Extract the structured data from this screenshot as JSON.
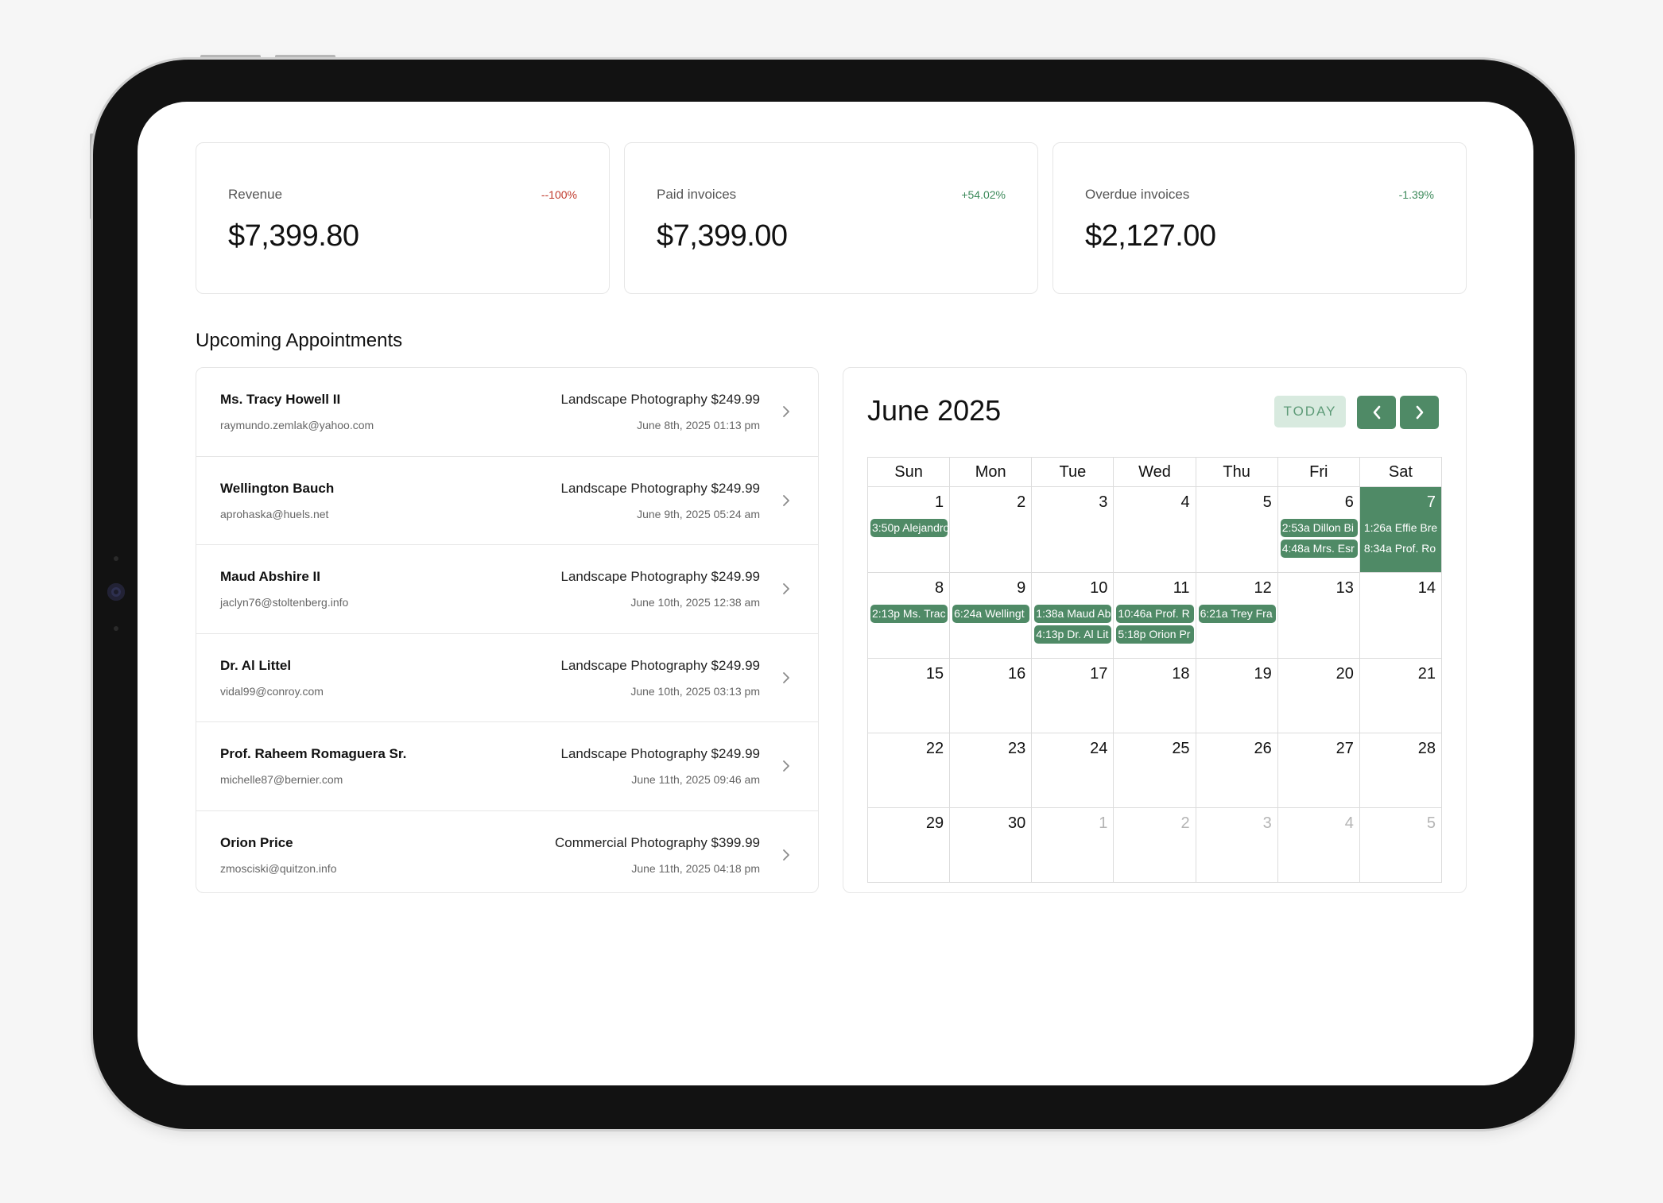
{
  "stats": [
    {
      "label": "Revenue",
      "value": "$7,399.80",
      "change": "--100%",
      "change_color": "#c0392b"
    },
    {
      "label": "Paid invoices",
      "value": "$7,399.00",
      "change": "+54.02%",
      "change_color": "#3d8a5b"
    },
    {
      "label": "Overdue invoices",
      "value": "$2,127.00",
      "change": "-1.39%",
      "change_color": "#3d8a5b"
    }
  ],
  "appointments": {
    "title": "Upcoming Appointments",
    "items": [
      {
        "name": "Ms. Tracy Howell II",
        "email": "raymundo.zemlak@yahoo.com",
        "service": "Landscape Photography $249.99",
        "date": "June 8th, 2025 01:13 pm"
      },
      {
        "name": "Wellington Bauch",
        "email": "aprohaska@huels.net",
        "service": "Landscape Photography $249.99",
        "date": "June 9th, 2025 05:24 am"
      },
      {
        "name": "Maud Abshire II",
        "email": "jaclyn76@stoltenberg.info",
        "service": "Landscape Photography $249.99",
        "date": "June 10th, 2025 12:38 am"
      },
      {
        "name": "Dr. Al Littel",
        "email": "vidal99@conroy.com",
        "service": "Landscape Photography $249.99",
        "date": "June 10th, 2025 03:13 pm"
      },
      {
        "name": "Prof. Raheem Romaguera Sr.",
        "email": "michelle87@bernier.com",
        "service": "Landscape Photography $249.99",
        "date": "June 11th, 2025 09:46 am"
      },
      {
        "name": "Orion Price",
        "email": "zmosciski@quitzon.info",
        "service": "Commercial Photography $399.99",
        "date": "June 11th, 2025 04:18 pm"
      }
    ]
  },
  "calendar": {
    "title": "June 2025",
    "today_label": "TODAY",
    "accent_color": "#4f8a66",
    "weekdays": [
      "Sun",
      "Mon",
      "Tue",
      "Wed",
      "Thu",
      "Fri",
      "Sat"
    ],
    "weeks": [
      [
        {
          "day": "1",
          "events": [
            "3:50p Alejandro"
          ]
        },
        {
          "day": "2",
          "events": []
        },
        {
          "day": "3",
          "events": []
        },
        {
          "day": "4",
          "events": []
        },
        {
          "day": "5",
          "events": []
        },
        {
          "day": "6",
          "events": [
            "2:53a Dillon Bi",
            "4:48a Mrs. Esr"
          ]
        },
        {
          "day": "7",
          "today": true,
          "events": [
            "1:26a Effie Bre",
            "8:34a Prof. Ro"
          ]
        }
      ],
      [
        {
          "day": "8",
          "events": [
            "2:13p Ms. Trac"
          ]
        },
        {
          "day": "9",
          "events": [
            "6:24a Wellingt"
          ]
        },
        {
          "day": "10",
          "events": [
            "1:38a Maud Ab",
            "4:13p Dr. Al Lit"
          ]
        },
        {
          "day": "11",
          "events": [
            "10:46a Prof. R",
            "5:18p Orion Pr"
          ]
        },
        {
          "day": "12",
          "events": [
            "6:21a Trey Fra"
          ]
        },
        {
          "day": "13",
          "events": []
        },
        {
          "day": "14",
          "events": []
        }
      ],
      [
        {
          "day": "15",
          "events": []
        },
        {
          "day": "16",
          "events": []
        },
        {
          "day": "17",
          "events": []
        },
        {
          "day": "18",
          "events": []
        },
        {
          "day": "19",
          "events": []
        },
        {
          "day": "20",
          "events": []
        },
        {
          "day": "21",
          "events": []
        }
      ],
      [
        {
          "day": "22",
          "events": []
        },
        {
          "day": "23",
          "events": []
        },
        {
          "day": "24",
          "events": []
        },
        {
          "day": "25",
          "events": []
        },
        {
          "day": "26",
          "events": []
        },
        {
          "day": "27",
          "events": []
        },
        {
          "day": "28",
          "events": []
        }
      ],
      [
        {
          "day": "29",
          "events": []
        },
        {
          "day": "30",
          "events": []
        },
        {
          "day": "1",
          "muted": true,
          "events": []
        },
        {
          "day": "2",
          "muted": true,
          "events": []
        },
        {
          "day": "3",
          "muted": true,
          "events": []
        },
        {
          "day": "4",
          "muted": true,
          "events": []
        },
        {
          "day": "5",
          "muted": true,
          "events": []
        }
      ]
    ]
  }
}
